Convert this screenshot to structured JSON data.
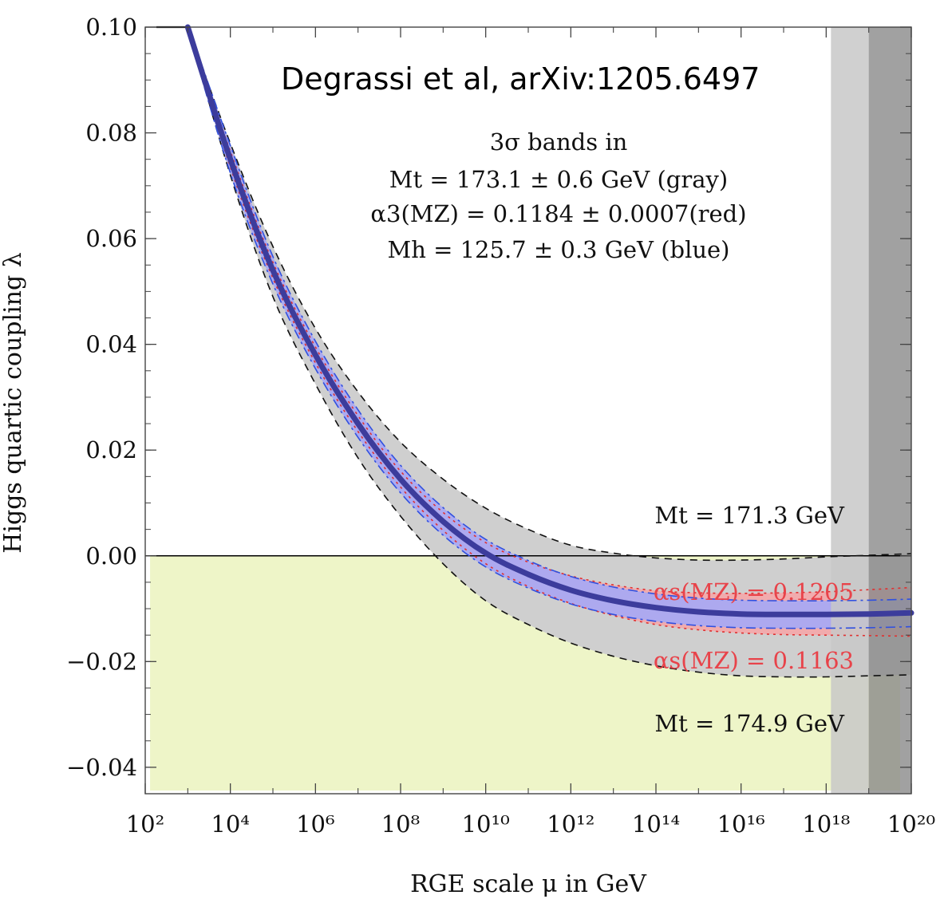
{
  "chart_data": {
    "type": "area",
    "source": "Degrassi et al, arXiv:1205.6497",
    "legend": {
      "lines": [
        "3σ bands in",
        "Mt = 173.1 ± 0.6 GeV (gray)",
        "α3(MZ) = 0.1184 ± 0.0007(red)",
        "Mh = 125.7 ± 0.3 GeV (blue)"
      ]
    },
    "xlabel": "RGE scale μ in GeV",
    "ylabel": "Higgs quartic coupling λ",
    "x_scale": "log10",
    "xlim": [
      100,
      1e+20
    ],
    "ylim": [
      -0.045,
      0.1
    ],
    "x_ticks": [
      "10²",
      "10⁴",
      "10⁶",
      "10⁸",
      "10¹⁰",
      "10¹²",
      "10¹⁴",
      "10¹⁶",
      "10¹⁸",
      "10²⁰"
    ],
    "y_ticks": [
      "0.10",
      "0.08",
      "0.06",
      "0.04",
      "0.02",
      "0.00",
      "−0.02",
      "−0.04"
    ],
    "x": [
      1000,
      10000.0,
      100000.0,
      1000000.0,
      10000000.0,
      100000000.0,
      1000000000.0,
      10000000000.0,
      100000000000.0,
      1000000000000.0,
      10000000000000.0,
      100000000000000.0,
      1000000000000000.0,
      1e+16,
      1e+17,
      1e+18,
      1e+19,
      1e+20
    ],
    "series": [
      {
        "name": "central",
        "values": [
          0.1,
          0.075,
          0.054,
          0.038,
          0.025,
          0.0145,
          0.0065,
          0.0005,
          -0.0035,
          -0.0065,
          -0.0085,
          -0.0098,
          -0.0106,
          -0.011,
          -0.0111,
          -0.0111,
          -0.011,
          -0.0108
        ]
      },
      {
        "name": "Mt = 171.3 GeV",
        "values": [
          0.1,
          0.078,
          0.0585,
          0.043,
          0.031,
          0.0215,
          0.0145,
          0.009,
          0.005,
          0.002,
          0.0005,
          -0.0004,
          -0.0008,
          -0.0008,
          -0.0006,
          -0.0002,
          0.0001,
          0.0004
        ]
      },
      {
        "name": "Mt = 174.9 GeV",
        "values": [
          0.1,
          0.072,
          0.049,
          0.0325,
          0.0185,
          0.0075,
          -0.0015,
          -0.0085,
          -0.013,
          -0.0165,
          -0.019,
          -0.0208,
          -0.022,
          -0.0227,
          -0.0229,
          -0.0229,
          -0.0227,
          -0.0225
        ]
      },
      {
        "name": "αs(MZ) = 0.1205",
        "values": [
          0.1,
          0.0765,
          0.0555,
          0.0395,
          0.0265,
          0.016,
          0.0082,
          0.0025,
          -0.0012,
          -0.0038,
          -0.0055,
          -0.0066,
          -0.007,
          -0.0071,
          -0.007,
          -0.0068,
          -0.0064,
          -0.006
        ]
      },
      {
        "name": "αs(MZ) = 0.1163",
        "values": [
          0.1,
          0.0735,
          0.0525,
          0.0365,
          0.0235,
          0.013,
          0.0048,
          -0.0015,
          -0.0058,
          -0.009,
          -0.0113,
          -0.013,
          -0.014,
          -0.0146,
          -0.0149,
          -0.015,
          -0.0151,
          -0.0152
        ]
      }
    ],
    "annotations": [
      {
        "text": "Mt = 171.3 GeV"
      },
      {
        "text": "αs(MZ) = 0.1205"
      },
      {
        "text": "αs(MZ) = 0.1163"
      },
      {
        "text": "Mt = 174.9 GeV"
      }
    ],
    "colors": {
      "gray_band": "#cfcfcf",
      "red_band": "#f4a6a8",
      "blue_band": "#a9a9f2",
      "central": "#3c3c9c",
      "unstable_region": "#eef5c8",
      "planck_band_light": "#c8c8c8",
      "planck_band_dark": "#8a8a8a",
      "red_dash": "#e03030",
      "blue_dash": "#3050e0"
    }
  }
}
